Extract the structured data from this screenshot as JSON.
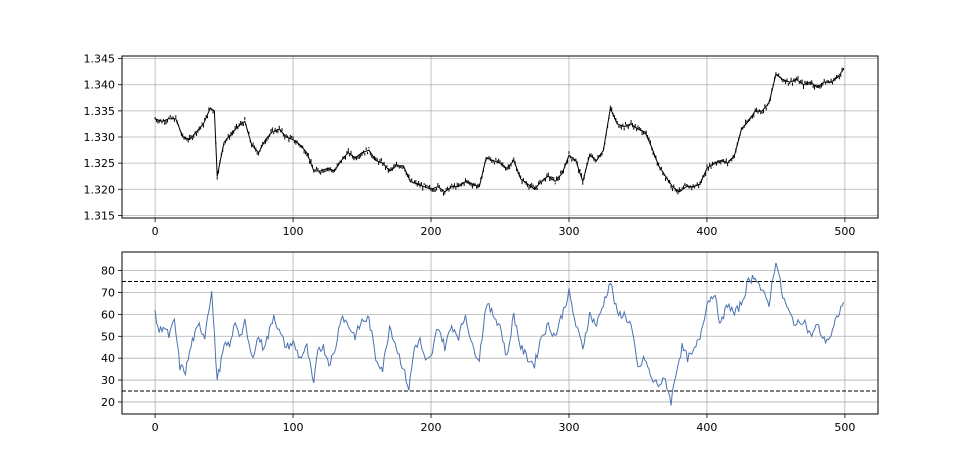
{
  "chart_data": [
    {
      "type": "line",
      "title": "",
      "xlabel": "",
      "ylabel": "",
      "xlim": [
        -24,
        524
      ],
      "ylim": [
        1.3145,
        1.3455
      ],
      "grid": true,
      "x_ticks": [
        0,
        100,
        200,
        300,
        400,
        500
      ],
      "x_tick_labels": [
        "0",
        "100",
        "200",
        "300",
        "400",
        "500"
      ],
      "y_ticks": [
        1.315,
        1.32,
        1.325,
        1.33,
        1.335,
        1.34,
        1.345
      ],
      "y_tick_labels": [
        "1.315",
        "1.320",
        "1.325",
        "1.330",
        "1.335",
        "1.340",
        "1.345"
      ],
      "series": [
        {
          "style": "candlestick-like black bars",
          "color": "#000000",
          "x": [
            0,
            5,
            10,
            15,
            20,
            25,
            30,
            35,
            40,
            43,
            45,
            50,
            55,
            60,
            65,
            70,
            75,
            80,
            85,
            90,
            95,
            100,
            105,
            110,
            115,
            120,
            125,
            130,
            135,
            140,
            145,
            150,
            155,
            160,
            165,
            170,
            175,
            180,
            185,
            190,
            195,
            200,
            205,
            210,
            215,
            220,
            225,
            230,
            235,
            240,
            245,
            250,
            255,
            260,
            265,
            270,
            275,
            280,
            285,
            290,
            295,
            300,
            305,
            310,
            315,
            320,
            325,
            330,
            335,
            340,
            345,
            350,
            355,
            360,
            365,
            370,
            375,
            380,
            385,
            390,
            395,
            400,
            405,
            410,
            415,
            420,
            425,
            430,
            435,
            440,
            445,
            450,
            455,
            460,
            465,
            470,
            475,
            480,
            485,
            490,
            495,
            499
          ],
          "values": [
            1.3335,
            1.333,
            1.3335,
            1.3335,
            1.33,
            1.3295,
            1.331,
            1.3325,
            1.3355,
            1.335,
            1.3225,
            1.329,
            1.3305,
            1.332,
            1.333,
            1.3285,
            1.327,
            1.3295,
            1.331,
            1.3315,
            1.33,
            1.3295,
            1.3285,
            1.327,
            1.3235,
            1.3235,
            1.324,
            1.3235,
            1.3255,
            1.327,
            1.326,
            1.327,
            1.3275,
            1.3255,
            1.325,
            1.3235,
            1.3245,
            1.3245,
            1.3215,
            1.321,
            1.3205,
            1.32,
            1.3205,
            1.3195,
            1.3205,
            1.3205,
            1.3215,
            1.321,
            1.3205,
            1.326,
            1.3255,
            1.325,
            1.324,
            1.3255,
            1.322,
            1.321,
            1.32,
            1.3215,
            1.3225,
            1.3215,
            1.323,
            1.3265,
            1.3255,
            1.3215,
            1.3265,
            1.3255,
            1.3275,
            1.3355,
            1.3325,
            1.332,
            1.3325,
            1.3315,
            1.331,
            1.328,
            1.3245,
            1.3225,
            1.3205,
            1.3195,
            1.3205,
            1.3205,
            1.321,
            1.324,
            1.325,
            1.3255,
            1.325,
            1.3265,
            1.3315,
            1.333,
            1.335,
            1.335,
            1.3365,
            1.342,
            1.341,
            1.3405,
            1.341,
            1.34,
            1.3405,
            1.3395,
            1.3405,
            1.3405,
            1.3415,
            1.343
          ]
        }
      ]
    },
    {
      "type": "line",
      "title": "",
      "xlabel": "",
      "ylabel": "",
      "xlim": [
        -24,
        524
      ],
      "ylim": [
        14.5,
        88.5
      ],
      "grid": true,
      "x_ticks": [
        0,
        100,
        200,
        300,
        400,
        500
      ],
      "x_tick_labels": [
        "0",
        "100",
        "200",
        "300",
        "400",
        "500"
      ],
      "y_ticks": [
        20,
        30,
        40,
        50,
        60,
        70,
        80
      ],
      "y_tick_labels": [
        "20",
        "30",
        "40",
        "50",
        "60",
        "70",
        "80"
      ],
      "hlines": [
        {
          "y": 75,
          "style": "dashed",
          "color": "#000000"
        },
        {
          "y": 25,
          "style": "dashed",
          "color": "#000000"
        }
      ],
      "series": [
        {
          "color": "#4c72b0",
          "x": [
            0,
            3,
            6,
            10,
            14,
            18,
            22,
            27,
            32,
            36,
            38,
            41,
            45,
            50,
            55,
            58,
            62,
            65,
            70,
            75,
            78,
            82,
            86,
            90,
            95,
            100,
            105,
            110,
            115,
            118,
            122,
            126,
            130,
            135,
            140,
            145,
            150,
            155,
            160,
            165,
            170,
            175,
            180,
            184,
            188,
            192,
            196,
            200,
            205,
            210,
            215,
            220,
            225,
            230,
            235,
            240,
            245,
            250,
            255,
            260,
            265,
            270,
            275,
            280,
            285,
            290,
            295,
            300,
            305,
            310,
            315,
            320,
            325,
            330,
            335,
            340,
            345,
            350,
            355,
            360,
            365,
            370,
            374,
            378,
            382,
            386,
            390,
            395,
            400,
            405,
            410,
            415,
            420,
            425,
            430,
            435,
            440,
            445,
            450,
            455,
            460,
            465,
            470,
            475,
            480,
            485,
            490,
            495,
            499
          ],
          "values": [
            60,
            52,
            55,
            50,
            57,
            36,
            34,
            48,
            55,
            50,
            60,
            70,
            30,
            45,
            47,
            57,
            50,
            56,
            40,
            50,
            45,
            50,
            60,
            52,
            45,
            47,
            40,
            45,
            27,
            45,
            45,
            38,
            42,
            60,
            55,
            50,
            57,
            58,
            40,
            35,
            55,
            45,
            35,
            26,
            45,
            48,
            38,
            40,
            55,
            45,
            55,
            50,
            60,
            45,
            40,
            65,
            60,
            55,
            40,
            60,
            45,
            40,
            37,
            50,
            55,
            50,
            60,
            70,
            55,
            45,
            60,
            55,
            65,
            75,
            60,
            60,
            55,
            35,
            40,
            30,
            28,
            30,
            20,
            35,
            45,
            40,
            42,
            50,
            65,
            70,
            55,
            65,
            60,
            65,
            75,
            78,
            70,
            65,
            85,
            68,
            60,
            55,
            58,
            50,
            55,
            48,
            50,
            60,
            65
          ]
        }
      ]
    }
  ]
}
